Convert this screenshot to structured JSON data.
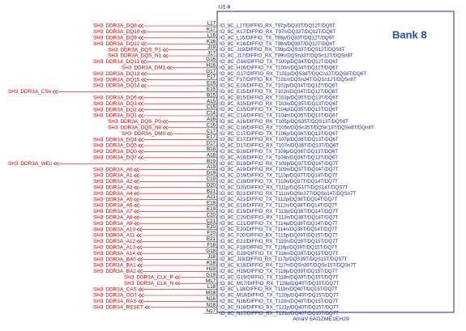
{
  "part_ref": "U1-8",
  "bank_title": "Bank 8",
  "part_name": "ArriaV 5AGZME1EH29",
  "pins": [
    {
      "number": "L17",
      "name": "IO_8C_L17/DIFFIO_RX_T97p/DQ33T/DQ12T/DQ6T"
    },
    {
      "number": "K17",
      "name": "IO_8C_K17/DIFFIO_RX_T97n/DQ33T/DQ12T/DQ6T"
    },
    {
      "number": "L16",
      "name": "IO_8C_L16/DIFFIO_TX_T98p/DQ33T/DQ12T/DQ6T"
    },
    {
      "number": "K16",
      "name": "IO_8C_K16/DIFFIO_TX_T98n/DQ33T/DQ12T/DQ6T"
    },
    {
      "number": "J19",
      "name": "IO_8C_J19/DIFFIO_RX_T99p/DQS33T/DQS12T/DQS6T"
    },
    {
      "number": "J17",
      "name": "IO_8C_J17/DIFFIO_RX_T99n/DQSn33T/DQSn12T/DQSn6T"
    },
    {
      "number": "G16",
      "name": "IO_8C_G16/DIFFIO_TX_T100p/DQ34T/DQ12T/DQ6T"
    },
    {
      "number": "H16",
      "name": "IO_8C_H16/DIFFIO_TX_T100n/DQ34T/DQ12T/DQ6T"
    },
    {
      "number": "G17",
      "name": "IO_8C_G17/DIFFIO_RX_T101p/DQS34T/DQCn12T/DQS6T/DQ6T"
    },
    {
      "number": "F17",
      "name": "IO_8C_F17/DIFFIO_RX_T101n/DQSn34T/DQSn12T/DQSn6T"
    },
    {
      "number": "E16",
      "name": "IO_8C_E16/DIFFIO_TX_T102p/DQ34T/DQ12T/DQ6T"
    },
    {
      "number": "E15",
      "name": "IO_8C_E15/DIFFIO_TX_T102n/DQ34T/DQ12T/DQ6T"
    },
    {
      "number": "B15",
      "name": "IO_8C_B15/DIFFIO_RX_T103p/DQ35T/DQ13T/DQ6T"
    },
    {
      "number": "A15",
      "name": "IO_8C_A15/DIFFIO_RX_T103n/DQ35T/DQ13T/DQ6T"
    },
    {
      "number": "C15",
      "name": "IO_8C_C15/DIFFIO_TX_T104p/DQ35T/DQ13T/DQ6T"
    },
    {
      "number": "C14",
      "name": "IO_8C_C14/DIFFIO_TX_T104n/DQ35T/DQ13T/DQ6T"
    },
    {
      "number": "A16",
      "name": "IO_8C_A16/DIFFIO_RX_T105p/DQS35T/DQS13T/DQS6T"
    },
    {
      "number": "C16",
      "name": "IO_8C_C16/DIFFIO_RX_T105n/DQSn35T/DQSn13T/DQSn6T/DQn6T"
    },
    {
      "number": "C17",
      "name": "IO_8C_C17/DIFFIO_TX_T106p/DQ36T/DQ13T/DQ6T"
    },
    {
      "number": "E17",
      "name": "IO_8C_E17/DIFFIO_RX_T107p/DQ36T/DQ13T/DQ6T"
    },
    {
      "number": "D17",
      "name": "IO_8C_D17/DIFFIO_RX_T107n/DQ36T/DQ13T/DQ6T"
    },
    {
      "number": "B18",
      "name": "IO_8C_B18/DIFFIO_TX_T108p/DQ36T/DQ13T/DQ6T"
    },
    {
      "number": "A18",
      "name": "IO_8C_A18/DIFFIO_TX_T108n/DQ36T/DQ13T/DQ6T"
    },
    {
      "number": "B19",
      "name": "IO_8C_B19/DIFFIO_RX_T109p/DQ37T/DQ14T/DQ7T"
    },
    {
      "number": "A19",
      "name": "IO_8C_A19/DIFFIO_RX_T109n/DQ37T/DQ14T/DQ7T"
    },
    {
      "number": "D19",
      "name": "IO_8C_D19/DIFFIO_TX_T110p/DQ37T/DQ14T/DQ7T"
    },
    {
      "number": "C19",
      "name": "IO_8C_C19/DIFFIO_TX_T110n/DQ37T/DQ14T/DQ7T"
    },
    {
      "number": "D20",
      "name": "IO_8C_D20/DIFFIO_RX_T111p/DQS37T/DQS14T/DQS7T"
    },
    {
      "number": "B21",
      "name": "IO_8C_B21/DIFFIO_RX_T111n/DQSn37T/DQSn14T/DQSn7T"
    },
    {
      "number": "A21",
      "name": "IO_8C_A21/DIFFIO_TX_T112p/DQ38T/DQ14T/DQ7T"
    },
    {
      "number": "E18",
      "name": "IO_8C_E18/DIFFIO_TX_T112n/DQ38T/DQ14T/DQ7T"
    },
    {
      "number": "E19",
      "name": "IO_8C_E19/DIFFIO_RX_T113p/DQ38T/DQ14T/DQ7T"
    },
    {
      "number": "C20",
      "name": "IO_8C_C20/DIFFIO_RX_T113n/DQ38T/DQ14T/DQ7T"
    },
    {
      "number": "C21",
      "name": "IO_8C_C21/DIFFIO_TX_T114p/DQ38T/DQ14T/DQ7T"
    },
    {
      "number": "E20",
      "name": "IO_8C_E20/DIFFIO_TX_T114n/DQ38T/DQ14T/DQ7T"
    },
    {
      "number": "F20",
      "name": "IO_8C_F20/DIFFIO_RX_T115p/DQ39T/DQ15T/DQ7T"
    },
    {
      "number": "E21",
      "name": "IO_8C_E21/DIFFIO_RX_T115n/DQ39T/DQ15T/DQ7T"
    },
    {
      "number": "F18",
      "name": "IO_8C_F18/DIFFIO_TX_T116p/DQ39T/DQ15T/DQ7T"
    },
    {
      "number": "G18",
      "name": "IO_8C_G18/DIFFIO_TX_T116n/DQ39T/DQ15T/DQ7T"
    },
    {
      "number": "J18",
      "name": "IO_8C_J18/DIFFIO_RX_T117p/DQS39T/DQS15T/DQS7T"
    },
    {
      "number": "K18",
      "name": "IO_8C_K18/DIFFIO_RX_T117n/DQSn39T/DQSn15T/DQSn7T"
    },
    {
      "number": "H19",
      "name": "IO_8C_H19/DIFFIO_TX_T118p/DQ39T/DQ15T/DQ7T"
    },
    {
      "number": "G19",
      "name": "IO_8C_G19/DIFFIO_TX_T118n/DQ39T/DQ15T/DQ7T"
    },
    {
      "number": "M17",
      "name": "IO_8C_M17/DIFFIO_RX_T119p/DQ40T/DQ15T/DQ7T"
    },
    {
      "number": "L18",
      "name": "IO_8C_L18/DIFFIO_RX_T119n/DQ40T/DQ15T/DQ7T"
    },
    {
      "number": "M18",
      "name": "IO_8C_M18/DIFFIO_TX_T120p/DQ40T/DQ15T/DQ7T"
    },
    {
      "number": "N16",
      "name": "IO_8C_N16/DIFFIO_TX_T120n/DQ40T/DQ15T/DQ7T"
    },
    {
      "number": "N18",
      "name": "IO_8C_N18/DIFFIO_RX_T121p/DQ40T/DQ15T/DQ7T"
    },
    {
      "number": "N17",
      "name": "IO_8C_N17/DIFFIO_RX_T121n/DQ40T/DQ15T/DQ7T"
    }
  ],
  "nets": [
    {
      "sheet": "SH3",
      "signal": "DDR3A_DQ8"
    },
    {
      "sheet": "SH3",
      "signal": "DDR3A_DQ10"
    },
    {
      "sheet": "SH3",
      "signal": "DDR3A_DQ9"
    },
    {
      "sheet": "SH3",
      "signal": "DDR3A_DQ12"
    },
    {
      "sheet": "SH3",
      "signal": "DDR3A_DQS_P1"
    },
    {
      "sheet": "SH3",
      "signal": "DDR3A_DQS_N1"
    },
    {
      "sheet": "SH3",
      "signal": "DDR3A_DQ11"
    },
    {
      "sheet": "SH3",
      "signal": "DDR3A_DM1"
    },
    {
      "sheet": "SH3",
      "signal": "DDR3A_DQ13"
    },
    {
      "sheet": "SH3",
      "signal": "DDR3A_DQ15"
    },
    {
      "sheet": "SH3",
      "signal": "DDR3A_DQ14"
    },
    {
      "sheet": "SH3",
      "signal": "DDR3A_CSn"
    },
    {
      "sheet": "SH3",
      "signal": "DDR3A_DQ6"
    },
    {
      "sheet": "SH3",
      "signal": "DDR3A_DQ3"
    },
    {
      "sheet": "SH3",
      "signal": "DDR3A_DQ2"
    },
    {
      "sheet": "SH3",
      "signal": "DDR3A_DQ1"
    },
    {
      "sheet": "SH3",
      "signal": "DDR3A_DQS_P0"
    },
    {
      "sheet": "SH3",
      "signal": "DDR3A_DQS_N0"
    },
    {
      "sheet": "SH3",
      "signal": "DDR3A_DM0"
    },
    {
      "sheet": "SH3",
      "signal": "DDR3A_DQ4"
    },
    {
      "sheet": "SH3",
      "signal": "DDR3A_DQ5"
    },
    {
      "sheet": "SH3",
      "signal": "DDR3A_DQ0"
    },
    {
      "sheet": "SH3",
      "signal": "DDR3A_DQ7"
    },
    {
      "sheet": "SH3",
      "signal": "DDR3A_WEn"
    },
    {
      "sheet": "SH3",
      "signal": "DDR3A_A0"
    },
    {
      "sheet": "SH3",
      "signal": "DDR3A_A1"
    },
    {
      "sheet": "SH3",
      "signal": "DDR3A_A2"
    },
    {
      "sheet": "SH3",
      "signal": "DDR3A_A3"
    },
    {
      "sheet": "SH3",
      "signal": "DDR3A_A4"
    },
    {
      "sheet": "SH3",
      "signal": "DDR3A_A5"
    },
    {
      "sheet": "SH3",
      "signal": "DDR3A_A6"
    },
    {
      "sheet": "SH3",
      "signal": "DDR3A_A7"
    },
    {
      "sheet": "SH3",
      "signal": "DDR3A_A8"
    },
    {
      "sheet": "SH3",
      "signal": "DDR3A_A9"
    },
    {
      "sheet": "SH3",
      "signal": "DDR3A_A10"
    },
    {
      "sheet": "SH3",
      "signal": "DDR3A_A11"
    },
    {
      "sheet": "SH3",
      "signal": "DDR3A_A12"
    },
    {
      "sheet": "SH3",
      "signal": "DDR3A_A13"
    },
    {
      "sheet": "SH3",
      "signal": "DDR3A_A14"
    },
    {
      "sheet": "SH3",
      "signal": "DDR3A_BA0"
    },
    {
      "sheet": "SH3",
      "signal": "DDR3A_BA1"
    },
    {
      "sheet": "SH3",
      "signal": "DDR3A_BA2"
    },
    {
      "sheet": "SH3",
      "signal": "DDR3A_CLK_P"
    },
    {
      "sheet": "SH3",
      "signal": "DDR3A_CLK_N"
    },
    {
      "sheet": "SH3",
      "signal": "DDR3A_CAS"
    },
    {
      "sheet": "SH3",
      "signal": "DDR3A_ODT"
    },
    {
      "sheet": "SH3",
      "signal": "DDR3A_RAS"
    },
    {
      "sheet": "SH3",
      "signal": "DDR3A_RESET"
    }
  ]
}
